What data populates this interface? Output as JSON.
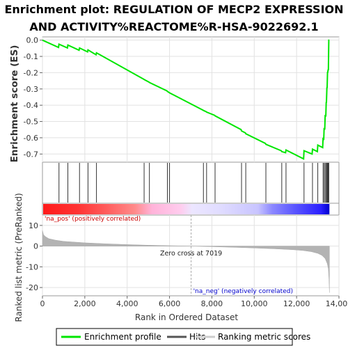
{
  "chart_data": {
    "type": "line",
    "title_line1": "Enrichment plot: REGULATION OF MECP2 EXPRESSION",
    "title_line2": "AND ACTIVITY%REACTOME%R-HSA-9022692.1",
    "ylabel_top": "Enrichment score (ES)",
    "ylabel_bottom": "Ranked list metric (PreRanked)",
    "xlabel": "Rank in Ordered Dataset",
    "x_range": [
      0,
      14000
    ],
    "x_ticks": [
      0,
      2000,
      4000,
      6000,
      8000,
      10000,
      12000,
      14000
    ],
    "x_tick_labels": [
      "0",
      "2,000",
      "4,000",
      "6,000",
      "8,000",
      "10,000",
      "12,000",
      "14,000"
    ],
    "es_range": [
      -0.75,
      0.02
    ],
    "es_ticks": [
      0.0,
      -0.1,
      -0.2,
      -0.3,
      -0.4,
      -0.5,
      -0.6,
      -0.7
    ],
    "es_tick_labels": [
      "0.0",
      "-0.1",
      "-0.2",
      "-0.3",
      "-0.4",
      "-0.5",
      "-0.6",
      "-0.7"
    ],
    "metric_range": [
      -24,
      15
    ],
    "metric_ticks": [
      10,
      0,
      -10,
      -20
    ],
    "metric_tick_labels": [
      "10",
      "0",
      "-10",
      "-20"
    ],
    "dataset_size": 13550,
    "zero_cross": 7019,
    "zero_cross_label": "Zero cross at 7019",
    "pos_label": "'na_pos' (positively correlated)",
    "neg_label": "'na_neg' (negatively correlated)",
    "hits": [
      780,
      1200,
      1750,
      2150,
      2550,
      4800,
      5050,
      5900,
      6000,
      7600,
      7750,
      8150,
      9400,
      9600,
      10550,
      11300,
      11500,
      12350,
      12750,
      13000,
      13250,
      13300,
      13350,
      13400,
      13430,
      13460,
      13490,
      13520
    ],
    "es_curve": {
      "x": [
        0,
        760,
        780,
        1180,
        1200,
        1730,
        1750,
        2130,
        2150,
        2530,
        2550,
        4780,
        4800,
        5030,
        5050,
        5880,
        5900,
        5980,
        6000,
        7580,
        7600,
        7730,
        7750,
        8130,
        8150,
        9380,
        9400,
        9580,
        9600,
        10530,
        10550,
        11280,
        11300,
        11480,
        11500,
        12330,
        12350,
        12730,
        12750,
        12980,
        13000,
        13230,
        13250,
        13280,
        13300,
        13330,
        13350,
        13380,
        13400,
        13410,
        13430,
        13440,
        13460,
        13470,
        13490,
        13500,
        13520,
        13550
      ],
      "y": [
        0.0,
        -0.045,
        -0.025,
        -0.048,
        -0.03,
        -0.062,
        -0.048,
        -0.072,
        -0.06,
        -0.09,
        -0.078,
        -0.24,
        -0.242,
        -0.258,
        -0.26,
        -0.312,
        -0.315,
        -0.322,
        -0.324,
        -0.43,
        -0.432,
        -0.44,
        -0.442,
        -0.462,
        -0.465,
        -0.55,
        -0.558,
        -0.57,
        -0.575,
        -0.635,
        -0.64,
        -0.68,
        -0.685,
        -0.692,
        -0.675,
        -0.73,
        -0.68,
        -0.7,
        -0.67,
        -0.685,
        -0.645,
        -0.66,
        -0.6,
        -0.615,
        -0.54,
        -0.55,
        -0.46,
        -0.47,
        -0.38,
        -0.385,
        -0.29,
        -0.295,
        -0.195,
        -0.2,
        -0.18,
        -0.185,
        0.0,
        0.0
      ]
    },
    "metric_curve": {
      "x": [
        0,
        50,
        150,
        300,
        600,
        1000,
        2000,
        3000,
        4000,
        5000,
        6000,
        7019,
        8000,
        9000,
        10000,
        11000,
        11800,
        12300,
        12700,
        13000,
        13200,
        13350,
        13450,
        13500,
        13530,
        13550
      ],
      "y": [
        7.5,
        5.5,
        4.5,
        3.6,
        2.9,
        2.3,
        1.6,
        1.1,
        0.75,
        0.45,
        0.2,
        0.0,
        -0.25,
        -0.55,
        -0.9,
        -1.3,
        -1.7,
        -2.1,
        -2.7,
        -3.5,
        -4.5,
        -6.0,
        -8.5,
        -11.0,
        -16.0,
        -22.5
      ]
    }
  },
  "legend": {
    "items": [
      {
        "label": "Enrichment profile",
        "color": "#00e600"
      },
      {
        "label": "Hits",
        "color": "#555555"
      },
      {
        "label": "Ranking metric scores",
        "color": "#cccccc"
      }
    ]
  }
}
